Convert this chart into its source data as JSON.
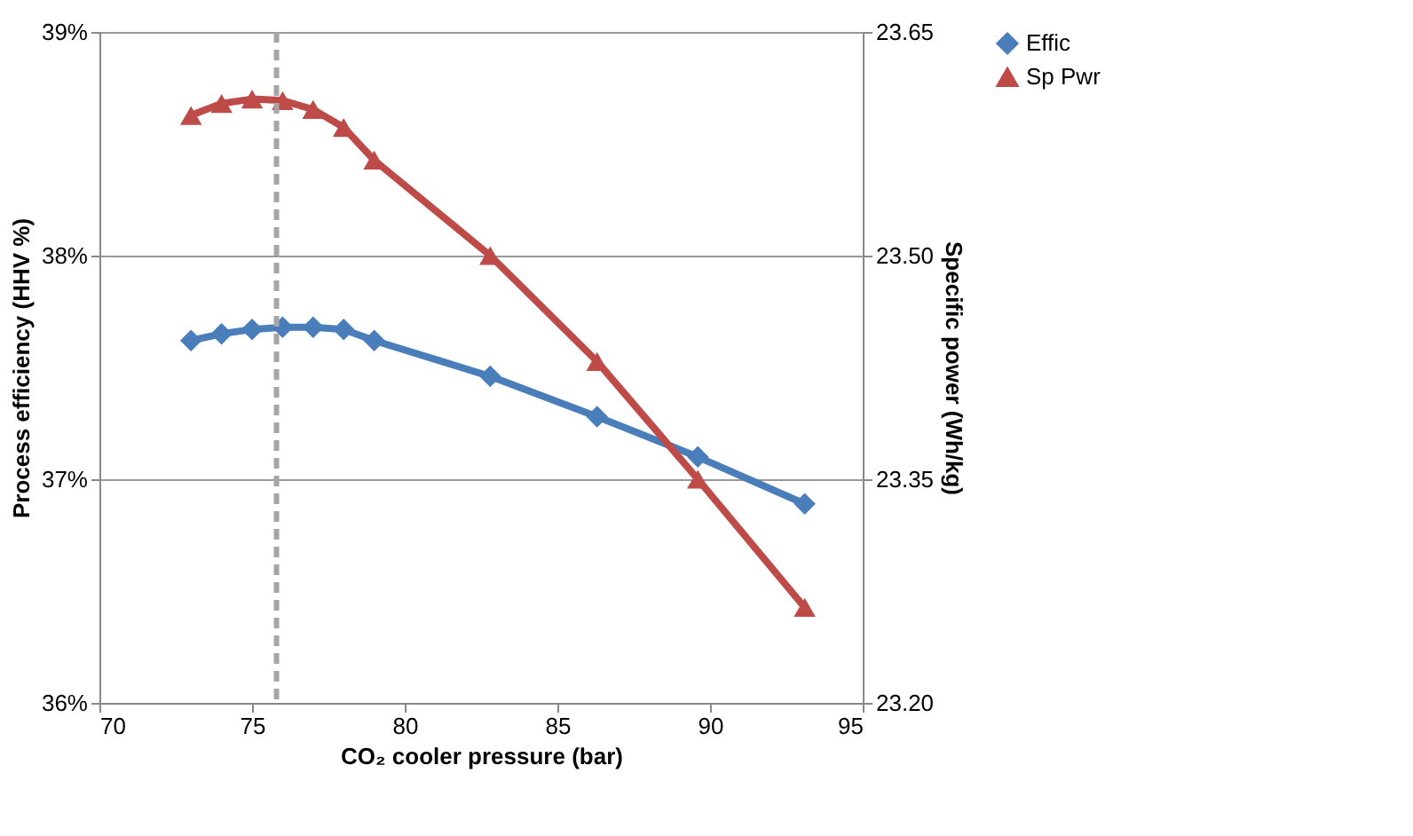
{
  "chart_data": {
    "type": "line",
    "xlabel": "CO₂ cooler pressure  (bar)",
    "ylabel": "Process efficiency  (HHV %)",
    "y2label": "Specific power  (Wh/kg)",
    "xlim": [
      70,
      95
    ],
    "xticks": [
      70,
      75,
      80,
      85,
      90,
      95
    ],
    "ylim": [
      36,
      39
    ],
    "yticks": [
      {
        "value": 36,
        "label": "36%"
      },
      {
        "value": 37,
        "label": "37%"
      },
      {
        "value": 38,
        "label": "38%"
      },
      {
        "value": 39,
        "label": "39%"
      }
    ],
    "y2lim": [
      23.2,
      23.65
    ],
    "y2ticks": [
      {
        "value": 23.2,
        "label": "23.20"
      },
      {
        "value": 23.35,
        "label": "23.35"
      },
      {
        "value": 23.5,
        "label": "23.50"
      },
      {
        "value": 23.65,
        "label": "23.65"
      }
    ],
    "grid": "y",
    "legend": "right",
    "line_style": "solid",
    "ref_lines": [
      {
        "axis": "x",
        "value": 75.8,
        "color": "#a6a6a6",
        "line_style": "dashed"
      }
    ],
    "series": [
      {
        "name": "Effic",
        "color": "#4a7ebb",
        "marker": "diamond",
        "x": [
          73,
          74,
          75,
          76,
          77,
          78,
          79,
          82.8,
          86.3,
          89.6,
          93.1
        ],
        "values": [
          37.62,
          37.65,
          37.67,
          37.68,
          37.68,
          37.67,
          37.62,
          37.46,
          37.28,
          37.1,
          36.89
        ]
      },
      {
        "name": "Sp Pwr",
        "color": "#be4b48",
        "marker": "triangle",
        "axis": "y2",
        "x": [
          73,
          74,
          75,
          76,
          77,
          78,
          79,
          82.8,
          86.3,
          89.6,
          93.1
        ],
        "values": [
          23.594,
          23.602,
          23.605,
          23.604,
          23.598,
          23.586,
          23.564,
          23.5,
          23.429,
          23.35,
          23.264
        ]
      }
    ]
  }
}
